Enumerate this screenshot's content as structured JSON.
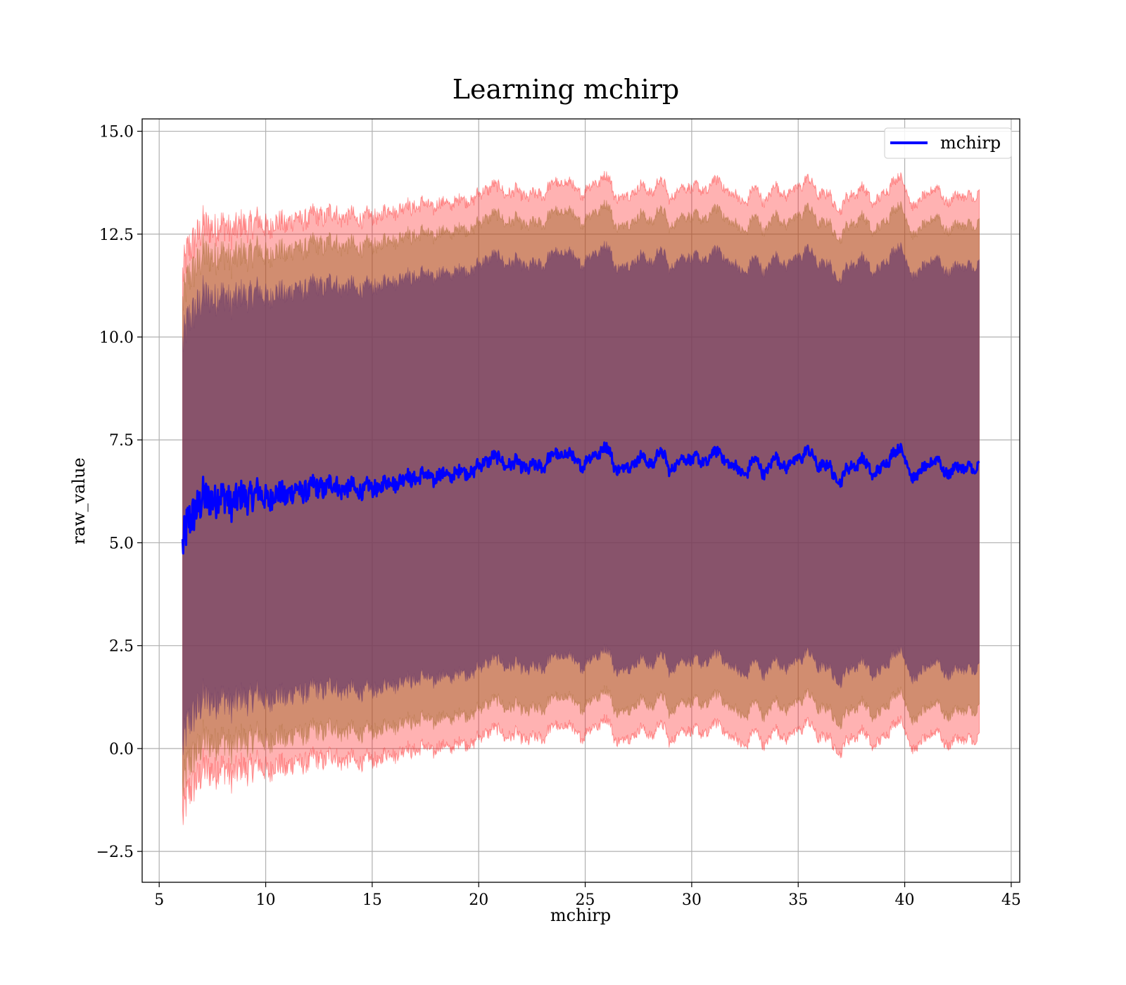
{
  "chart_data": {
    "type": "line",
    "title": "Learning mchirp",
    "xlabel": "mchirp",
    "ylabel": "raw_value",
    "xlim": [
      4.2,
      45.4
    ],
    "ylim": [
      -3.25,
      15.3
    ],
    "x_ticks": [
      5,
      10,
      15,
      20,
      25,
      30,
      35,
      40,
      45
    ],
    "x_tick_labels": [
      "5",
      "10",
      "15",
      "20",
      "25",
      "30",
      "35",
      "40",
      "45"
    ],
    "y_ticks": [
      -2.5,
      0.0,
      2.5,
      5.0,
      7.5,
      10.0,
      12.5,
      15.0
    ],
    "y_tick_labels": [
      "−2.5",
      "0.0",
      "2.5",
      "5.0",
      "7.5",
      "10.0",
      "12.5",
      "15.0"
    ],
    "grid": true,
    "legend": {
      "placement": "top-right",
      "entries": [
        "mchirp"
      ]
    },
    "colors": {
      "line": "#0000ff",
      "band_outer": "#ff0000",
      "band_middle": "#9a6020",
      "band_inner": "#6a3a6a"
    },
    "band_offsets": [
      6.6,
      5.9,
      4.9
    ],
    "band_opacities": [
      0.3,
      0.45,
      0.7
    ],
    "series": [
      {
        "name": "mchirp",
        "x": [
          6.1,
          6.3,
          6.5,
          7.0,
          7.5,
          8.0,
          8.5,
          9.0,
          9.5,
          10.0,
          11.0,
          12.0,
          13.0,
          14.0,
          15.0,
          16.0,
          17.0,
          18.0,
          19.0,
          20.0,
          20.5,
          21.0,
          21.5,
          22.0,
          22.5,
          23.0,
          23.5,
          24.0,
          24.5,
          25.0,
          25.5,
          26.0,
          26.5,
          27.0,
          27.5,
          28.0,
          28.5,
          29.0,
          29.5,
          30.0,
          30.5,
          31.0,
          31.5,
          32.0,
          32.5,
          33.0,
          33.5,
          34.0,
          34.5,
          35.0,
          35.5,
          36.0,
          36.5,
          37.0,
          37.5,
          38.0,
          38.5,
          39.0,
          39.5,
          40.0,
          40.5,
          41.0,
          41.5,
          42.0,
          42.5,
          43.0,
          43.3,
          43.5
        ],
        "y": [
          4.9,
          5.3,
          5.7,
          6.0,
          6.1,
          6.1,
          6.0,
          6.1,
          6.2,
          6.1,
          6.2,
          6.3,
          6.4,
          6.3,
          6.3,
          6.5,
          6.6,
          6.6,
          6.7,
          6.8,
          7.1,
          7.0,
          6.9,
          6.9,
          6.8,
          6.9,
          7.1,
          7.2,
          7.0,
          6.9,
          7.2,
          7.3,
          6.8,
          6.8,
          7.1,
          6.9,
          7.2,
          6.8,
          7.0,
          7.1,
          6.9,
          7.2,
          7.1,
          6.8,
          6.7,
          7.0,
          6.7,
          7.1,
          6.8,
          7.1,
          7.2,
          6.9,
          6.8,
          6.5,
          6.9,
          7.0,
          6.7,
          6.8,
          7.3,
          7.1,
          6.5,
          6.9,
          7.0,
          6.7,
          6.8,
          6.9,
          6.6,
          6.9
        ]
      }
    ]
  }
}
